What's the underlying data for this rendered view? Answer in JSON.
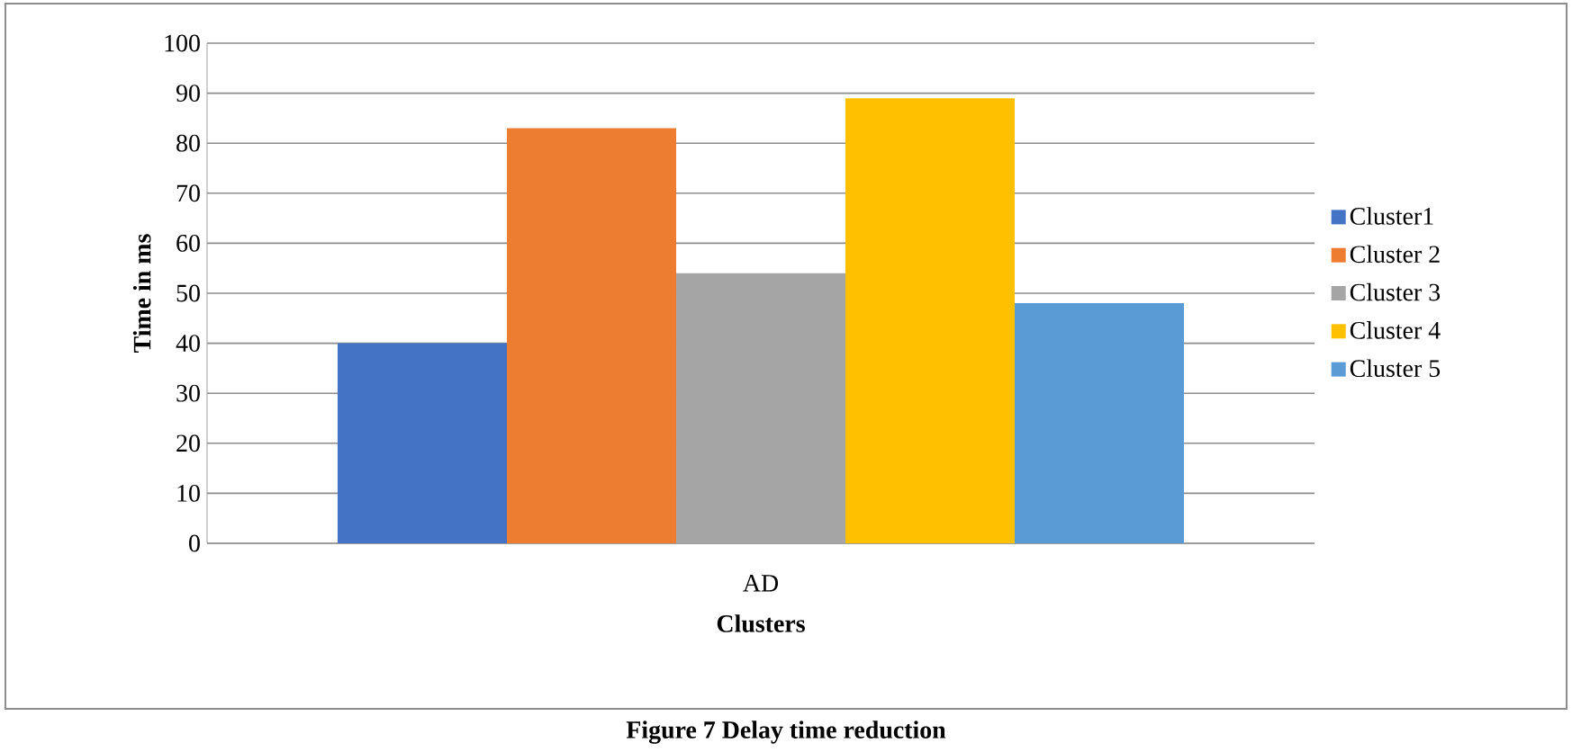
{
  "chart_data": {
    "type": "bar",
    "xlabel": "Clusters",
    "ylabel": "Time in ms",
    "categories": [
      "AD"
    ],
    "series": [
      {
        "name": "Cluster1",
        "color": "#4472c4",
        "values": [
          40
        ]
      },
      {
        "name": "Cluster 2",
        "color": "#ed7d31",
        "values": [
          83
        ]
      },
      {
        "name": "Cluster 3",
        "color": "#a5a5a5",
        "values": [
          54
        ]
      },
      {
        "name": "Cluster 4",
        "color": "#ffc000",
        "values": [
          89
        ]
      },
      {
        "name": "Cluster 5",
        "color": "#5b9bd5",
        "values": [
          48
        ]
      }
    ],
    "ylim": [
      0,
      100
    ],
    "yticks": [
      0,
      10,
      20,
      30,
      40,
      50,
      60,
      70,
      80,
      90,
      100
    ],
    "grid": "y",
    "legend": "right",
    "annotations": [
      "Figure 7 Delay time reduction"
    ]
  }
}
